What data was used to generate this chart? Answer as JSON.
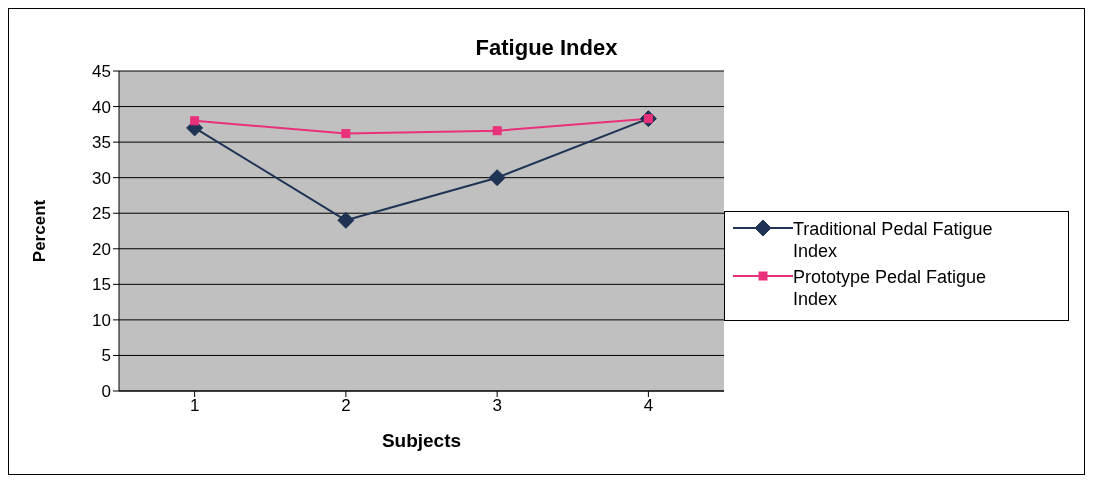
{
  "chart_data": {
    "type": "line",
    "title": "Fatigue Index",
    "xlabel": "Subjects",
    "ylabel": "Percent",
    "categories": [
      "1",
      "2",
      "3",
      "4"
    ],
    "series": [
      {
        "name": "Traditional Pedal Fatigue Index",
        "color": "#1f3355",
        "marker": "diamond",
        "values": [
          37,
          24,
          30,
          38.3
        ]
      },
      {
        "name": "Prototype Pedal Fatigue Index",
        "color": "#e8317a",
        "marker": "square",
        "values": [
          38,
          36.2,
          36.6,
          38.3
        ]
      }
    ],
    "ylim": [
      0,
      45
    ],
    "yticks": [
      0,
      5,
      10,
      15,
      20,
      25,
      30,
      35,
      40,
      45
    ],
    "grid": "y",
    "legend": "right",
    "line_style": "solid"
  }
}
